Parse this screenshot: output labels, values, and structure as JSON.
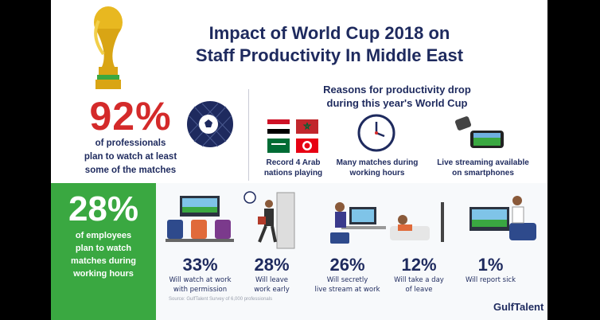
{
  "title_line1": "Impact of World Cup 2018 on",
  "title_line2": "Staff Productivity In Middle East",
  "stat_92": {
    "value": "92%",
    "caption_line1": "of professionals",
    "caption_line2": "plan to watch at least",
    "caption_line3": "some of the matches"
  },
  "reasons": {
    "title_line1": "Reasons for productivity drop",
    "title_line2": "during this year's World Cup",
    "items": [
      {
        "line1": "Record 4 Arab",
        "line2": "nations playing",
        "icon": "arab-flags-icon"
      },
      {
        "line1": "Many matches during",
        "line2": "working hours",
        "icon": "clock-icon"
      },
      {
        "line1": "Live streaming available",
        "line2": "on smartphones",
        "icon": "smartphone-icon"
      }
    ]
  },
  "stat_28": {
    "value": "28%",
    "caption_line1": "of employees",
    "caption_line2": "plan to watch",
    "caption_line3": "matches during",
    "caption_line4": "working hours"
  },
  "breakdown": [
    {
      "value": "33%",
      "line1": "Will watch at work",
      "line2": "with permission"
    },
    {
      "value": "28%",
      "line1": "Will leave",
      "line2": "work early"
    },
    {
      "value": "26%",
      "line1": "Will secretly",
      "line2": "live stream at work"
    },
    {
      "value": "12%",
      "line1": "Will take a day",
      "line2": "of leave"
    },
    {
      "value": "1%",
      "line1": "Will report sick",
      "line2": ""
    }
  ],
  "source": "Source: GulfTalent Survey of 6,000 professionals",
  "logo": {
    "part1": "Gulf",
    "part2": "Talent"
  },
  "colors": {
    "navy": "#1e2a5e",
    "red": "#d42a2a",
    "green": "#3aa841"
  }
}
